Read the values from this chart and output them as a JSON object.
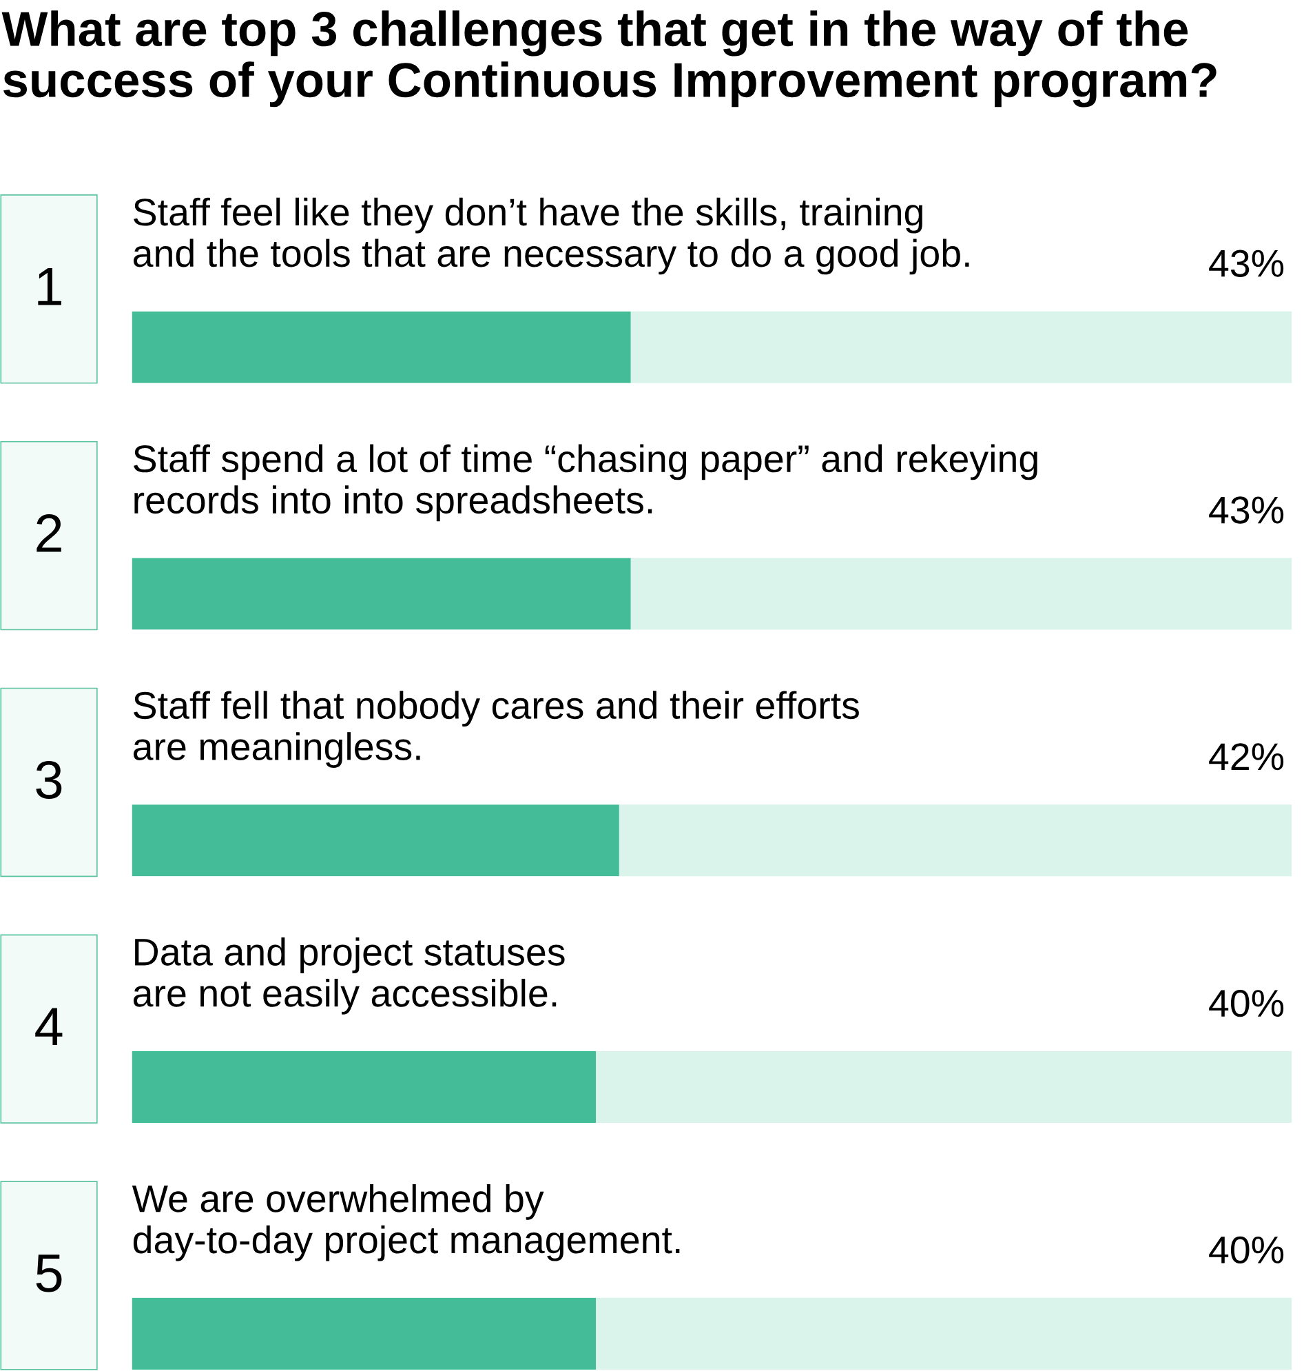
{
  "chart_data": {
    "type": "bar",
    "orientation": "horizontal",
    "title": "What are top 3 challenges that get in the way of the success of your Continuous Improvement program?",
    "categories": [
      "Staff feel like they don’t have the skills, training\nand the tools that are necessary to do a good job.",
      "Staff spend a lot of time “chasing paper” and rekeying\nrecords into into spreadsheets.",
      "Staff fell that nobody cares and their efforts\nare meaningless.",
      "Data and project statuses\nare not easily accessible.",
      "We are overwhelmed by\nday-to-day project management."
    ],
    "values": [
      43,
      43,
      42,
      40,
      40
    ],
    "value_labels": [
      "43%",
      "43%",
      "42%",
      "40%",
      "40%"
    ],
    "annotations": [
      "1",
      "2",
      "3",
      "4",
      "5"
    ],
    "color": "#44bc98",
    "xlim": [
      0,
      100
    ],
    "tick_labels": false
  }
}
